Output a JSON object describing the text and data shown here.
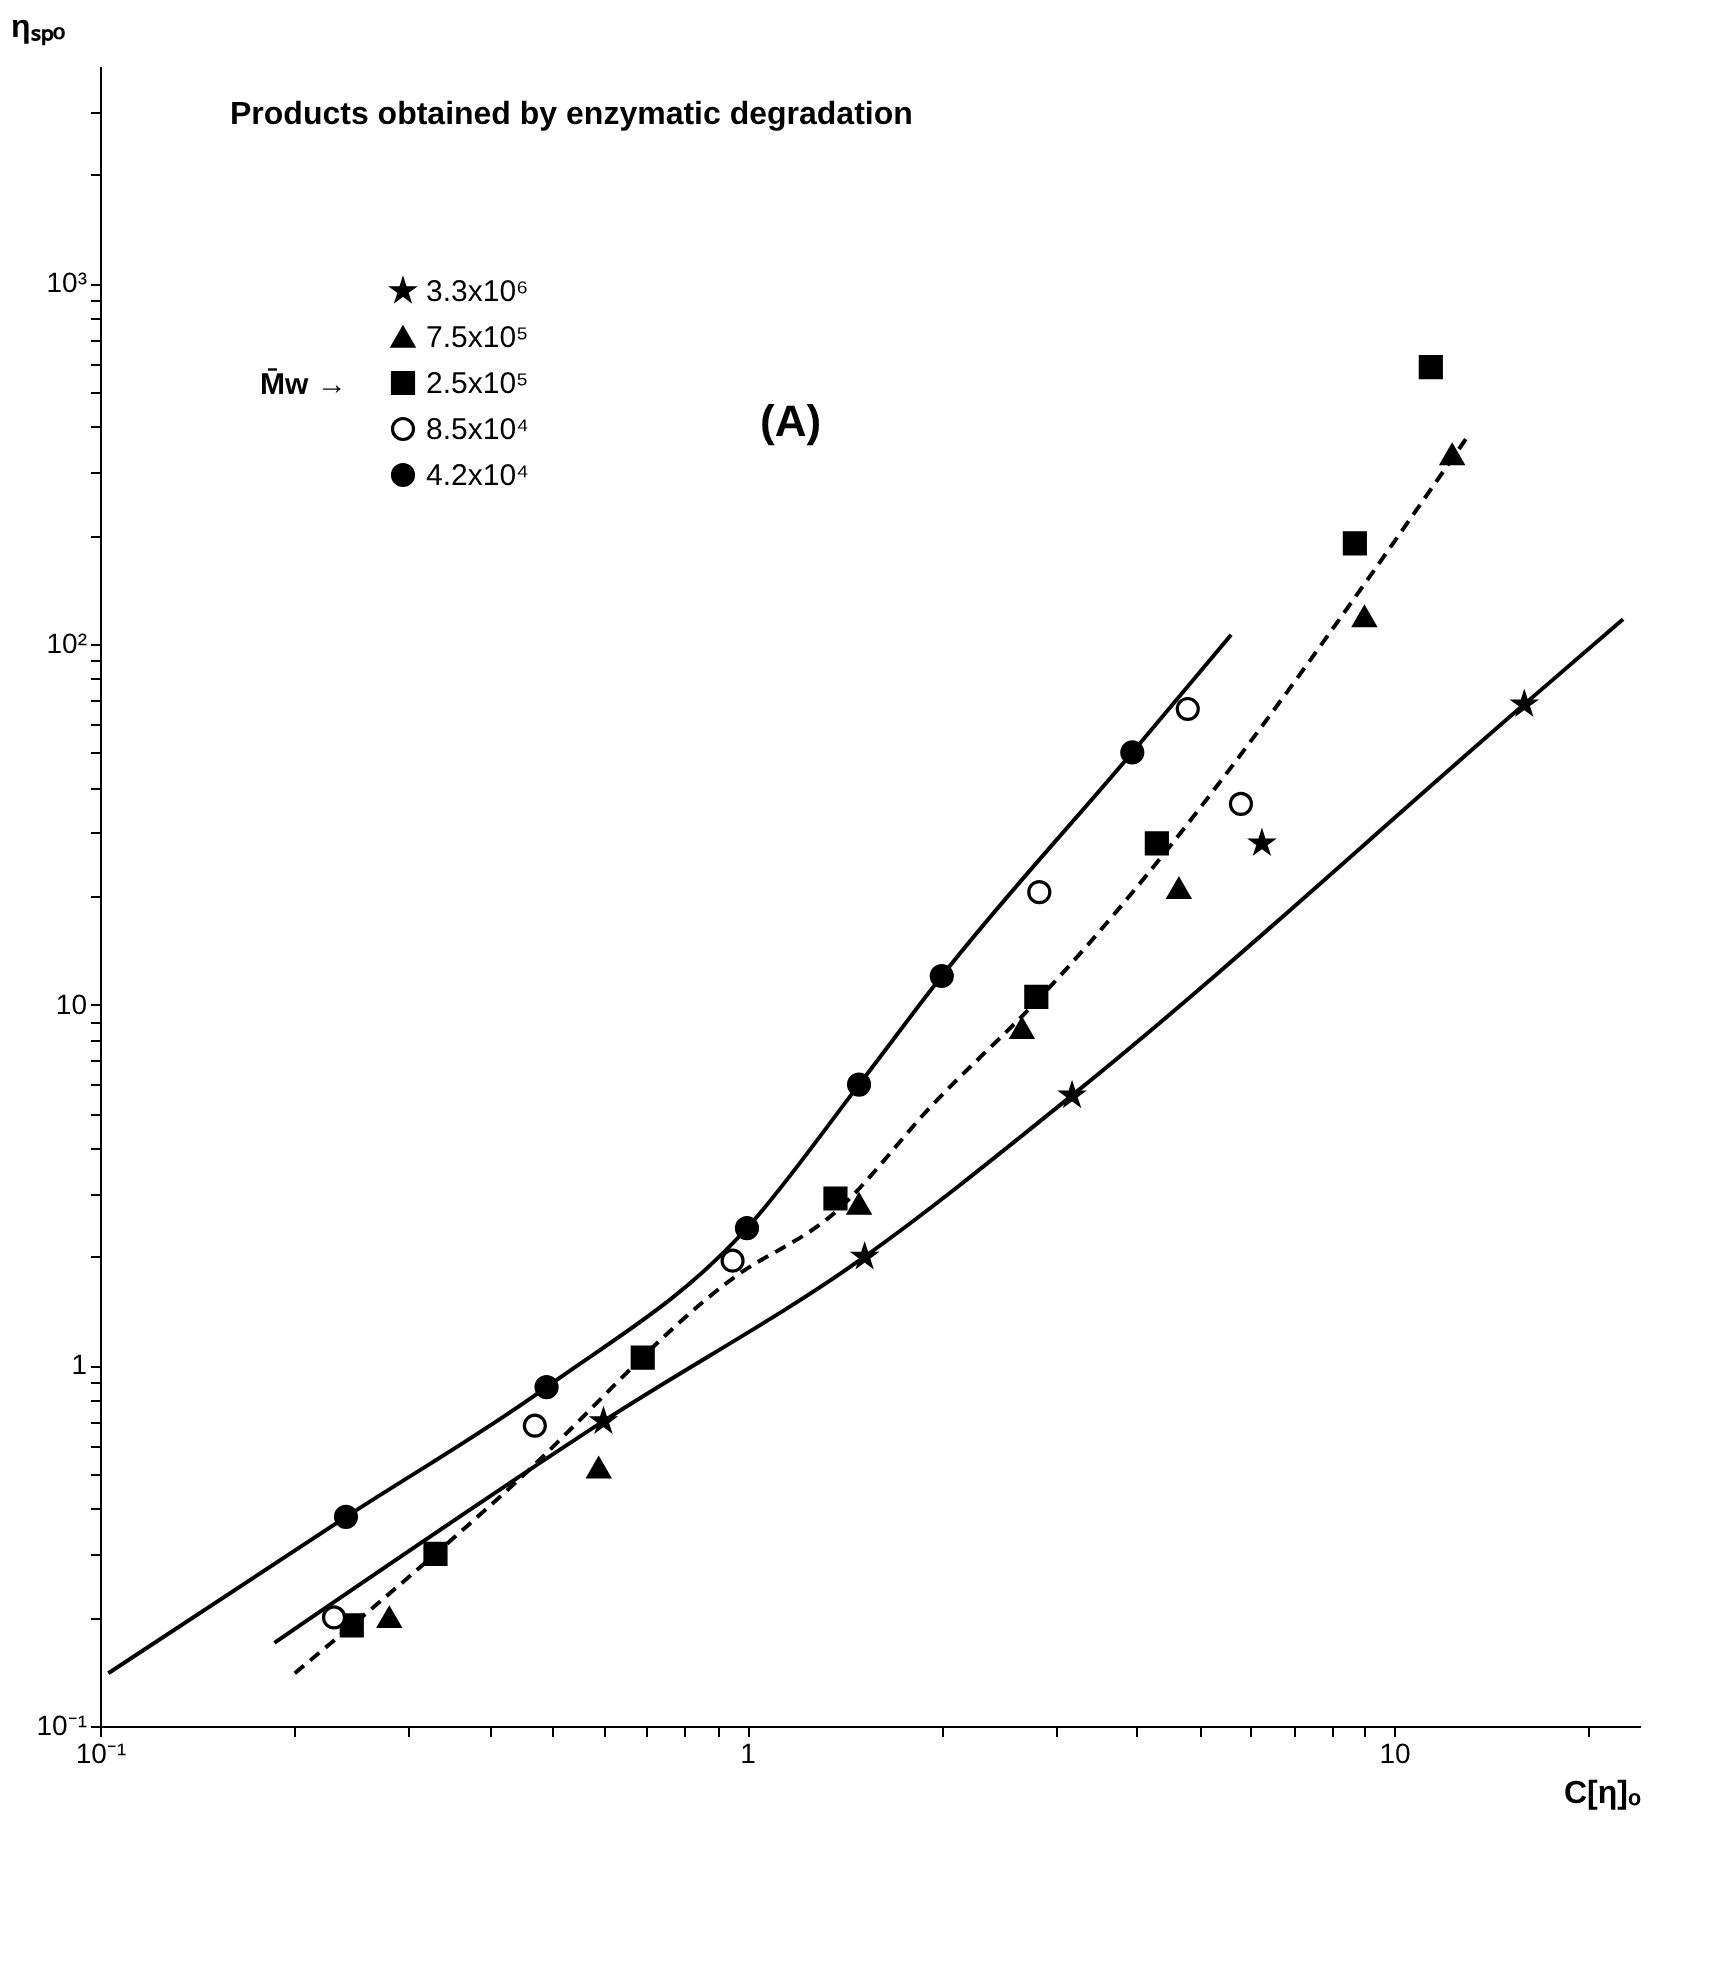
{
  "chart_data": {
    "type": "scatter",
    "title": "Products obtained by enzymatic degradation",
    "xlabel": "C[η]ₒ",
    "ylabel": "ηₛₚₒ",
    "legend_title": "M̄w →",
    "legend": "top left",
    "log": "xy",
    "grid": false,
    "annotations": [
      "(A)"
    ],
    "xlim": [
      0.1,
      24
    ],
    "ylim": [
      0.1,
      4000
    ],
    "xticks": [
      {
        "value": 0.1,
        "label": "10⁻¹"
      },
      {
        "value": 0.2,
        "label": null
      },
      {
        "value": 0.3,
        "label": null
      },
      {
        "value": 0.4,
        "label": null
      },
      {
        "value": 0.5,
        "label": null
      },
      {
        "value": 0.6,
        "label": null
      },
      {
        "value": 0.7,
        "label": null
      },
      {
        "value": 0.8,
        "label": null
      },
      {
        "value": 0.9,
        "label": null
      },
      1,
      {
        "value": 2,
        "label": null
      },
      {
        "value": 3,
        "label": null
      },
      {
        "value": 4,
        "label": null
      },
      {
        "value": 5,
        "label": null
      },
      {
        "value": 6,
        "label": null
      },
      {
        "value": 7,
        "label": null
      },
      {
        "value": 8,
        "label": null
      },
      {
        "value": 9,
        "label": null
      },
      10,
      {
        "value": 20,
        "label": null
      }
    ],
    "yticks": [
      {
        "value": 0.1,
        "label": "10⁻¹"
      },
      {
        "value": 0.2,
        "label": null
      },
      {
        "value": 0.3,
        "label": null
      },
      {
        "value": 0.4,
        "label": null
      },
      {
        "value": 0.5,
        "label": null
      },
      {
        "value": 0.6,
        "label": null
      },
      {
        "value": 0.7,
        "label": null
      },
      {
        "value": 0.8,
        "label": null
      },
      {
        "value": 0.9,
        "label": null
      },
      1,
      {
        "value": 2,
        "label": null
      },
      {
        "value": 3,
        "label": null
      },
      {
        "value": 4,
        "label": null
      },
      {
        "value": 5,
        "label": null
      },
      {
        "value": 6,
        "label": null
      },
      {
        "value": 7,
        "label": null
      },
      {
        "value": 8,
        "label": null
      },
      {
        "value": 9,
        "label": null
      },
      10,
      {
        "value": 20,
        "label": null
      },
      {
        "value": 30,
        "label": null
      },
      {
        "value": 40,
        "label": null
      },
      {
        "value": 50,
        "label": null
      },
      {
        "value": 60,
        "label": null
      },
      {
        "value": 70,
        "label": null
      },
      {
        "value": 80,
        "label": null
      },
      {
        "value": 90,
        "label": null
      },
      {
        "value": 100,
        "label": "10²"
      },
      {
        "value": 200,
        "label": null
      },
      {
        "value": 300,
        "label": null
      },
      {
        "value": 400,
        "label": null
      },
      {
        "value": 500,
        "label": null
      },
      {
        "value": 600,
        "label": null
      },
      {
        "value": 700,
        "label": null
      },
      {
        "value": 800,
        "label": null
      },
      {
        "value": 900,
        "label": null
      },
      {
        "value": 1000,
        "label": "10³"
      },
      {
        "value": 2000,
        "label": null
      },
      {
        "value": 3000,
        "label": null
      }
    ],
    "series": [
      {
        "name": "3.3x10⁶",
        "marker": "star",
        "color": "#000000",
        "x": [
          0.6,
          1.52,
          3.18,
          15.9,
          6.25
        ],
        "values": [
          0.7,
          2.0,
          5.6,
          68,
          28
        ]
      },
      {
        "name": "7.5x10⁵",
        "marker": "triangle",
        "color": "#000000",
        "x": [
          0.28,
          0.59,
          1.49,
          2.66,
          4.65,
          9.0,
          12.3
        ],
        "values": [
          0.2,
          0.52,
          2.8,
          8.6,
          21,
          119,
          335
        ]
      },
      {
        "name": "2.5x10⁵",
        "marker": "square",
        "color": "#000000",
        "x": [
          0.245,
          0.33,
          0.69,
          1.37,
          2.8,
          4.3,
          8.7,
          11.4
        ],
        "values": [
          0.19,
          0.3,
          1.05,
          2.9,
          10.5,
          28,
          190,
          585
        ]
      },
      {
        "name": "8.5x10⁴",
        "marker": "circle",
        "color": "#000000",
        "x": [
          0.23,
          0.47,
          0.95,
          2.83,
          4.8,
          5.8
        ],
        "values": [
          0.2,
          0.68,
          1.95,
          20.5,
          66,
          36
        ]
      },
      {
        "name": "4.2x10⁴",
        "marker": "circle",
        "color": "#000000",
        "x": [
          0.24,
          0.49,
          1.0,
          1.49,
          2.0,
          3.94
        ],
        "values": [
          0.38,
          0.87,
          2.4,
          6.0,
          12.0,
          50
        ]
      },
      {
        "type": "line",
        "line_style": "solid",
        "color": "#000000",
        "x": [
          0.103,
          0.24,
          0.49,
          1.0,
          1.49,
          2.0,
          3.94,
          5.6
        ],
        "values": [
          0.14,
          0.38,
          0.87,
          2.4,
          6.0,
          12.0,
          50,
          106
        ]
      },
      {
        "type": "line",
        "line_style": "dashed",
        "color": "#000000",
        "x": [
          0.2,
          0.33,
          0.42,
          0.95,
          1.37,
          1.94,
          2.8,
          13.0
        ],
        "values": [
          0.14,
          0.3,
          0.44,
          1.74,
          2.66,
          5.3,
          10.2,
          376
        ]
      },
      {
        "type": "line",
        "line_style": "solid",
        "color": "#000000",
        "x": [
          0.186,
          0.6,
          1.52,
          3.18,
          15.9,
          22.6
        ],
        "values": [
          0.17,
          0.7,
          2.0,
          5.6,
          68,
          117
        ]
      }
    ]
  }
}
